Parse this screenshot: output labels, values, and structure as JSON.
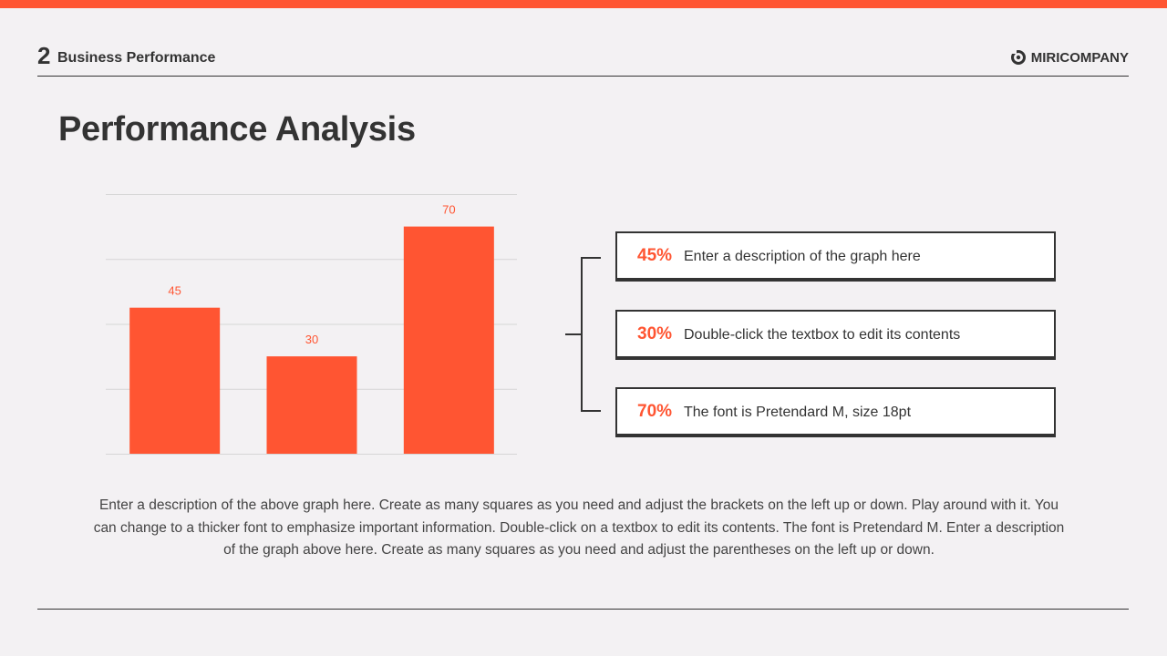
{
  "colors": {
    "accent": "#ff5532",
    "text": "#333333",
    "background": "#f3f1f3",
    "grid": "#d6d6d6"
  },
  "header": {
    "section_number": "2",
    "section_label": "Business Performance",
    "brand_icon": "miricompany-logo-icon",
    "brand_name": "MIRICOMPANY"
  },
  "title": "Performance Analysis",
  "chart_data": {
    "type": "bar",
    "categories": [
      "",
      "",
      ""
    ],
    "values": [
      45,
      30,
      70
    ],
    "data_labels": [
      "45",
      "30",
      "70"
    ],
    "title": "",
    "xlabel": "",
    "ylabel": "",
    "ylim": [
      0,
      80
    ],
    "grid": true,
    "legend": "none"
  },
  "cards": [
    {
      "pct": "45%",
      "text": "Enter a description of the graph here"
    },
    {
      "pct": "30%",
      "text": "Double-click the textbox to edit its contents"
    },
    {
      "pct": "70%",
      "text": "The font is Pretendard M, size 18pt"
    }
  ],
  "description": "Enter a description of the above graph here. Create as many squares as you need and adjust the brackets on the left up or down. Play around with it. You can change to a thicker font to emphasize important information. Double-click on a textbox to edit its contents. The font is Pretendard M. Enter a description of the graph above here. Create as many squares as you need and adjust the parentheses on the left up or down."
}
